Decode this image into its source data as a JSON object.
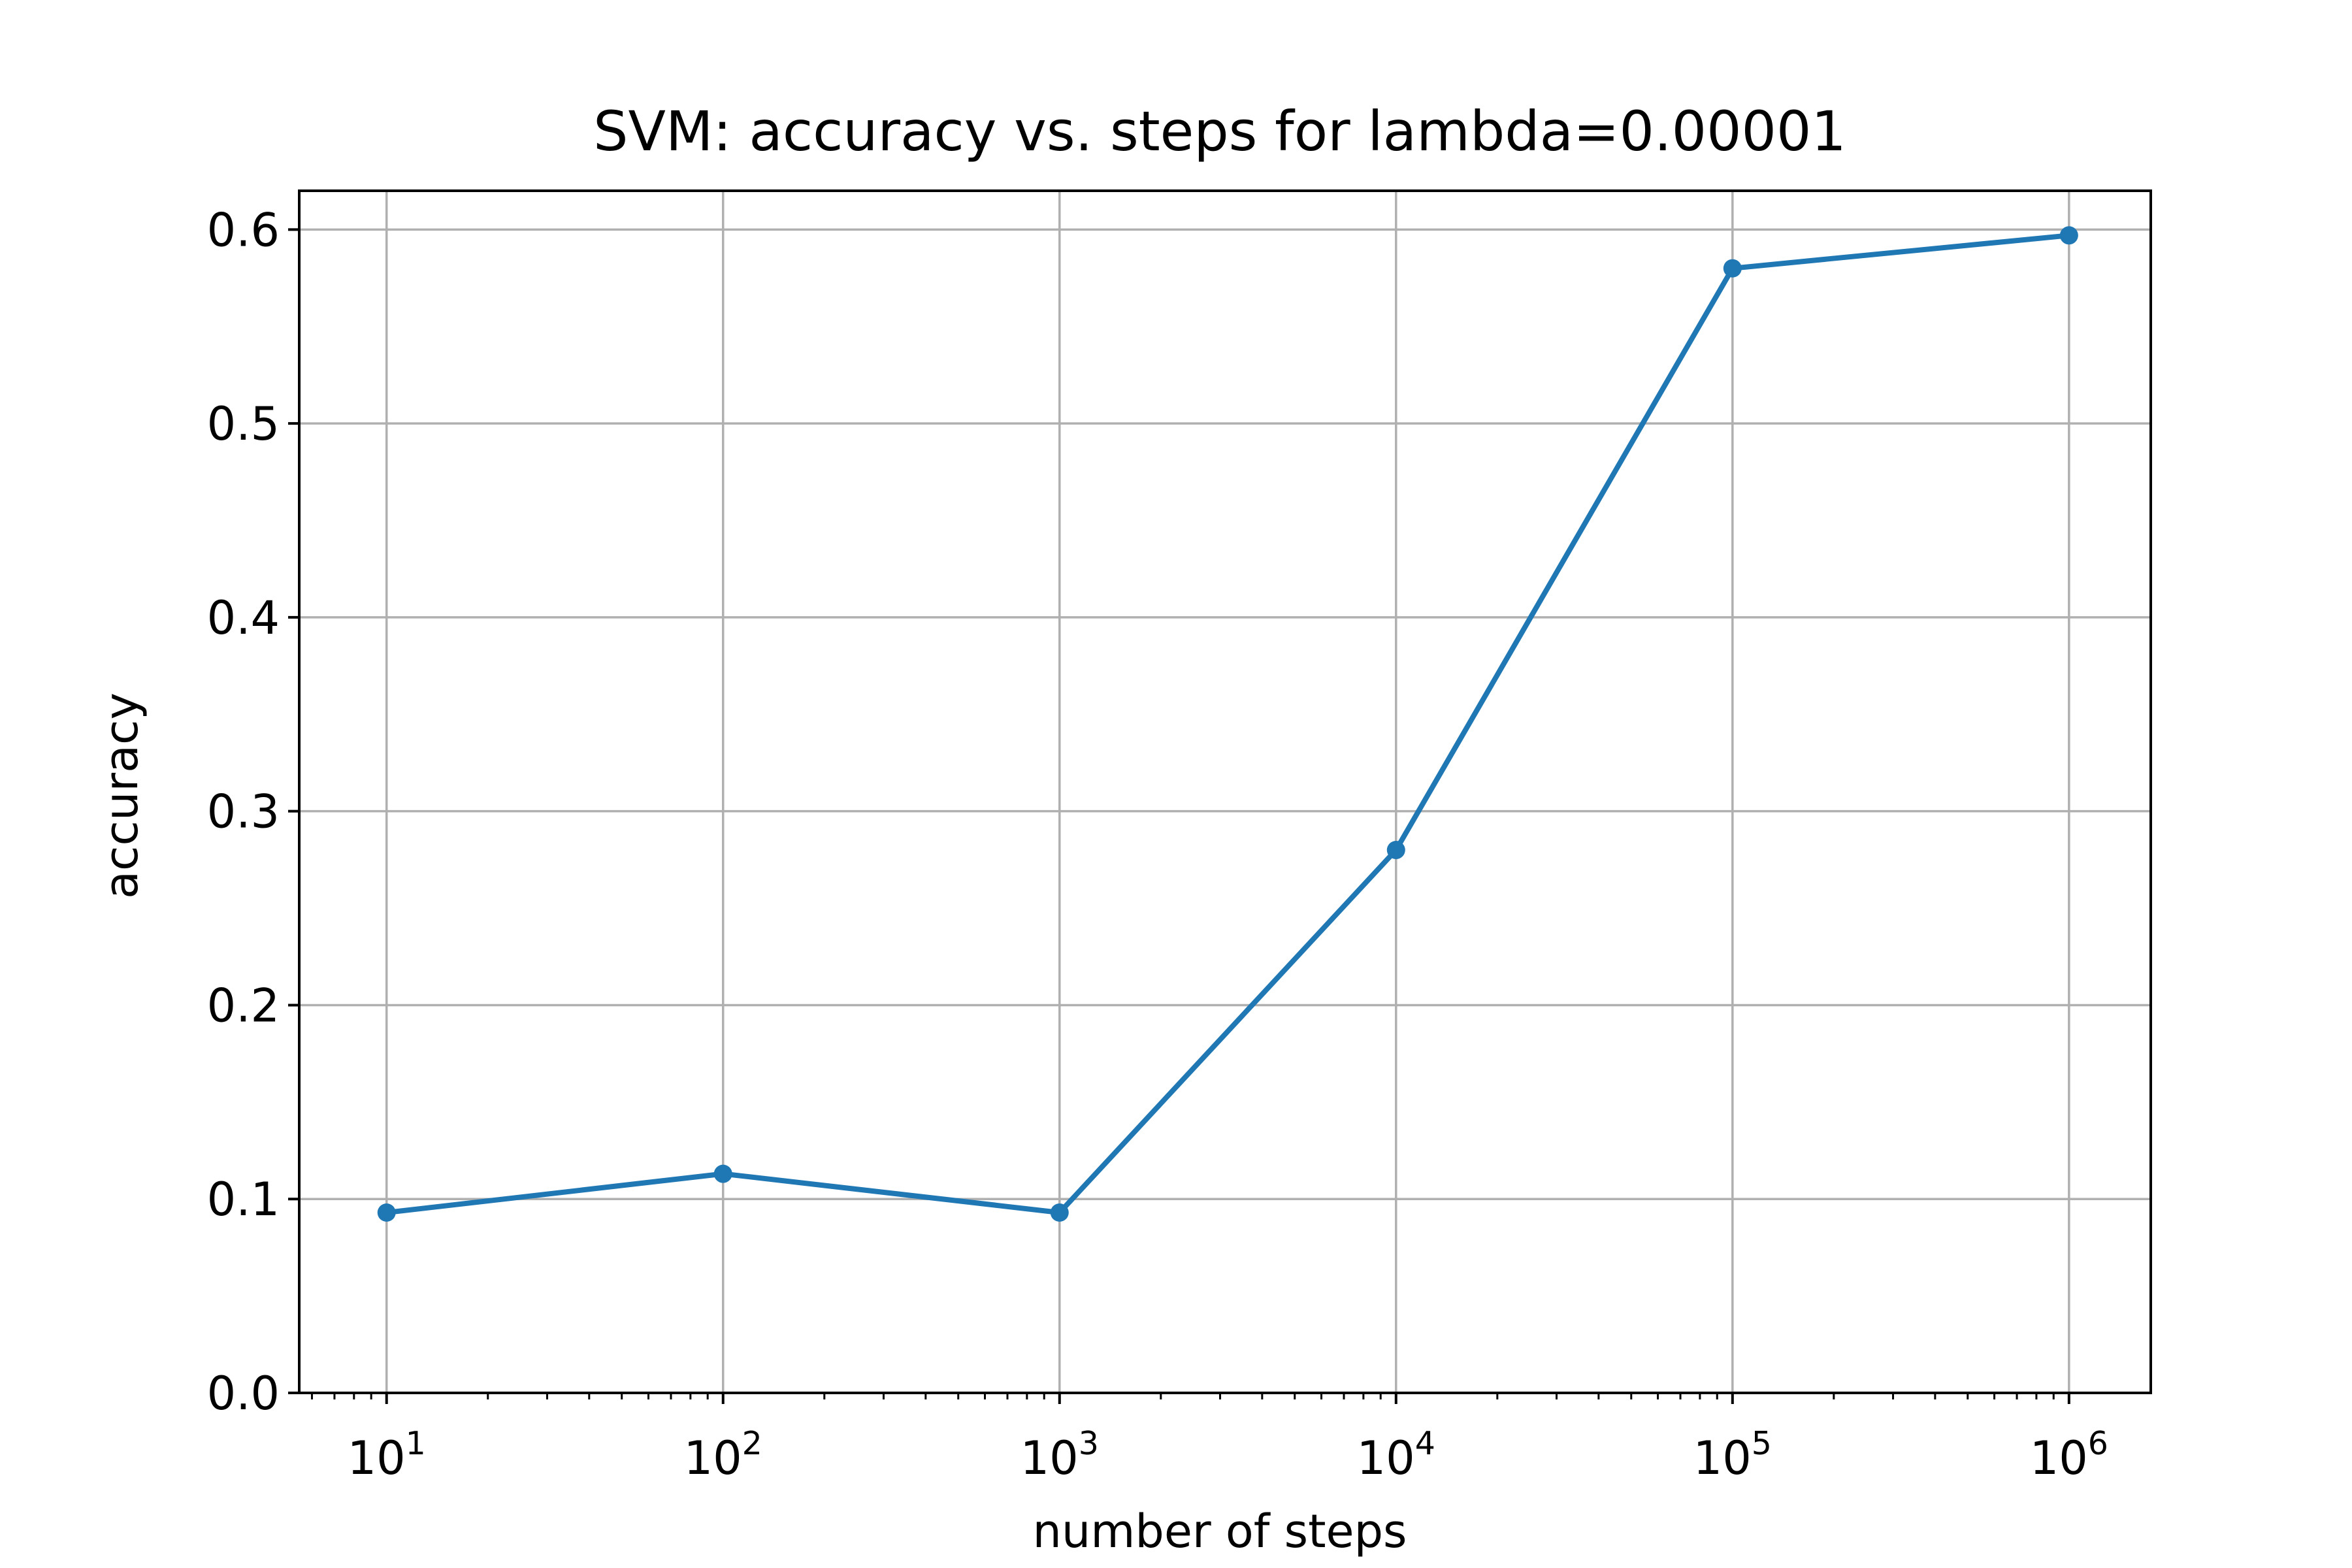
{
  "chart_data": {
    "type": "line",
    "title": "SVM: accuracy vs. steps for lambda=0.00001",
    "xlabel": "number of steps",
    "ylabel": "accuracy",
    "x_scale": "log",
    "xlim": [
      5.5,
      1750000
    ],
    "ylim": [
      0,
      0.62
    ],
    "grid": true,
    "x_ticks": [
      {
        "value": 10,
        "base": "10",
        "exp": "1"
      },
      {
        "value": 100,
        "base": "10",
        "exp": "2"
      },
      {
        "value": 1000,
        "base": "10",
        "exp": "3"
      },
      {
        "value": 10000,
        "base": "10",
        "exp": "4"
      },
      {
        "value": 100000,
        "base": "10",
        "exp": "5"
      },
      {
        "value": 1000000,
        "base": "10",
        "exp": "6"
      }
    ],
    "y_ticks": [
      {
        "value": 0.0,
        "label": "0.0"
      },
      {
        "value": 0.1,
        "label": "0.1"
      },
      {
        "value": 0.2,
        "label": "0.2"
      },
      {
        "value": 0.3,
        "label": "0.3"
      },
      {
        "value": 0.4,
        "label": "0.4"
      },
      {
        "value": 0.5,
        "label": "0.5"
      },
      {
        "value": 0.6,
        "label": "0.6"
      }
    ],
    "series": [
      {
        "color": "#1f77b4",
        "x": [
          10,
          100,
          1000,
          10000,
          100000,
          1000000
        ],
        "y": [
          0.093,
          0.113,
          0.093,
          0.28,
          0.58,
          0.597
        ]
      }
    ]
  }
}
